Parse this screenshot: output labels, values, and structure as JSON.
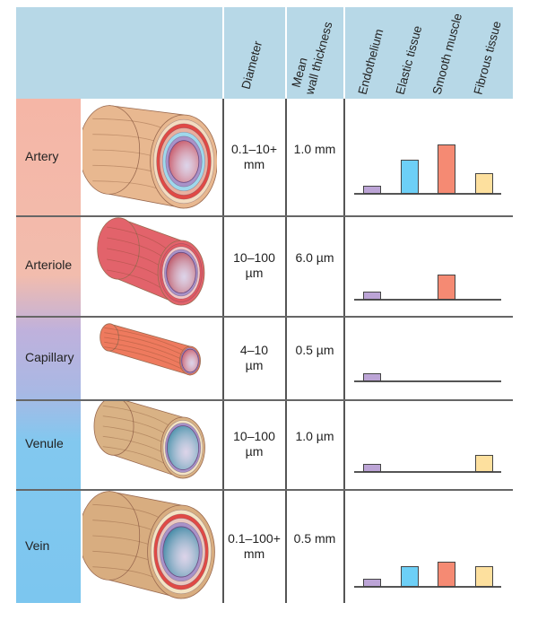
{
  "headers": {
    "diameter": "Diameter",
    "wall_line1": "Mean",
    "wall_line2": "wall thickness",
    "tissues": [
      "Endothelium",
      "Elastic tissue",
      "Smooth muscle",
      "Fibrous tissue"
    ]
  },
  "colors": {
    "header_bg": "#b7d8e7",
    "endothelium": "#bca4d6",
    "elastic": "#6dcff6",
    "smooth": "#f58a73",
    "fibrous": "#fde09e"
  },
  "rows": [
    {
      "name": "Artery",
      "diameter": [
        "0.1–10+",
        "mm"
      ],
      "wall": "1.0 mm",
      "tissue_relative": [
        1,
        4.6,
        6.8,
        2.8
      ]
    },
    {
      "name": "Arteriole",
      "diameter": [
        "10–100",
        "µm"
      ],
      "wall": "6.0 µm",
      "tissue_relative": [
        1,
        0,
        3.4,
        0
      ]
    },
    {
      "name": "Capillary",
      "diameter": [
        "4–10",
        "µm"
      ],
      "wall": "0.5 µm",
      "tissue_relative": [
        1,
        0,
        0,
        0
      ]
    },
    {
      "name": "Venule",
      "diameter": [
        "10–100",
        "µm"
      ],
      "wall": "1.0 µm",
      "tissue_relative": [
        1,
        0,
        0,
        2.3
      ]
    },
    {
      "name": "Vein",
      "diameter": [
        "0.1–100+",
        "mm"
      ],
      "wall": "0.5 mm",
      "tissue_relative": [
        1,
        2.8,
        3.4,
        2.8
      ]
    }
  ]
}
